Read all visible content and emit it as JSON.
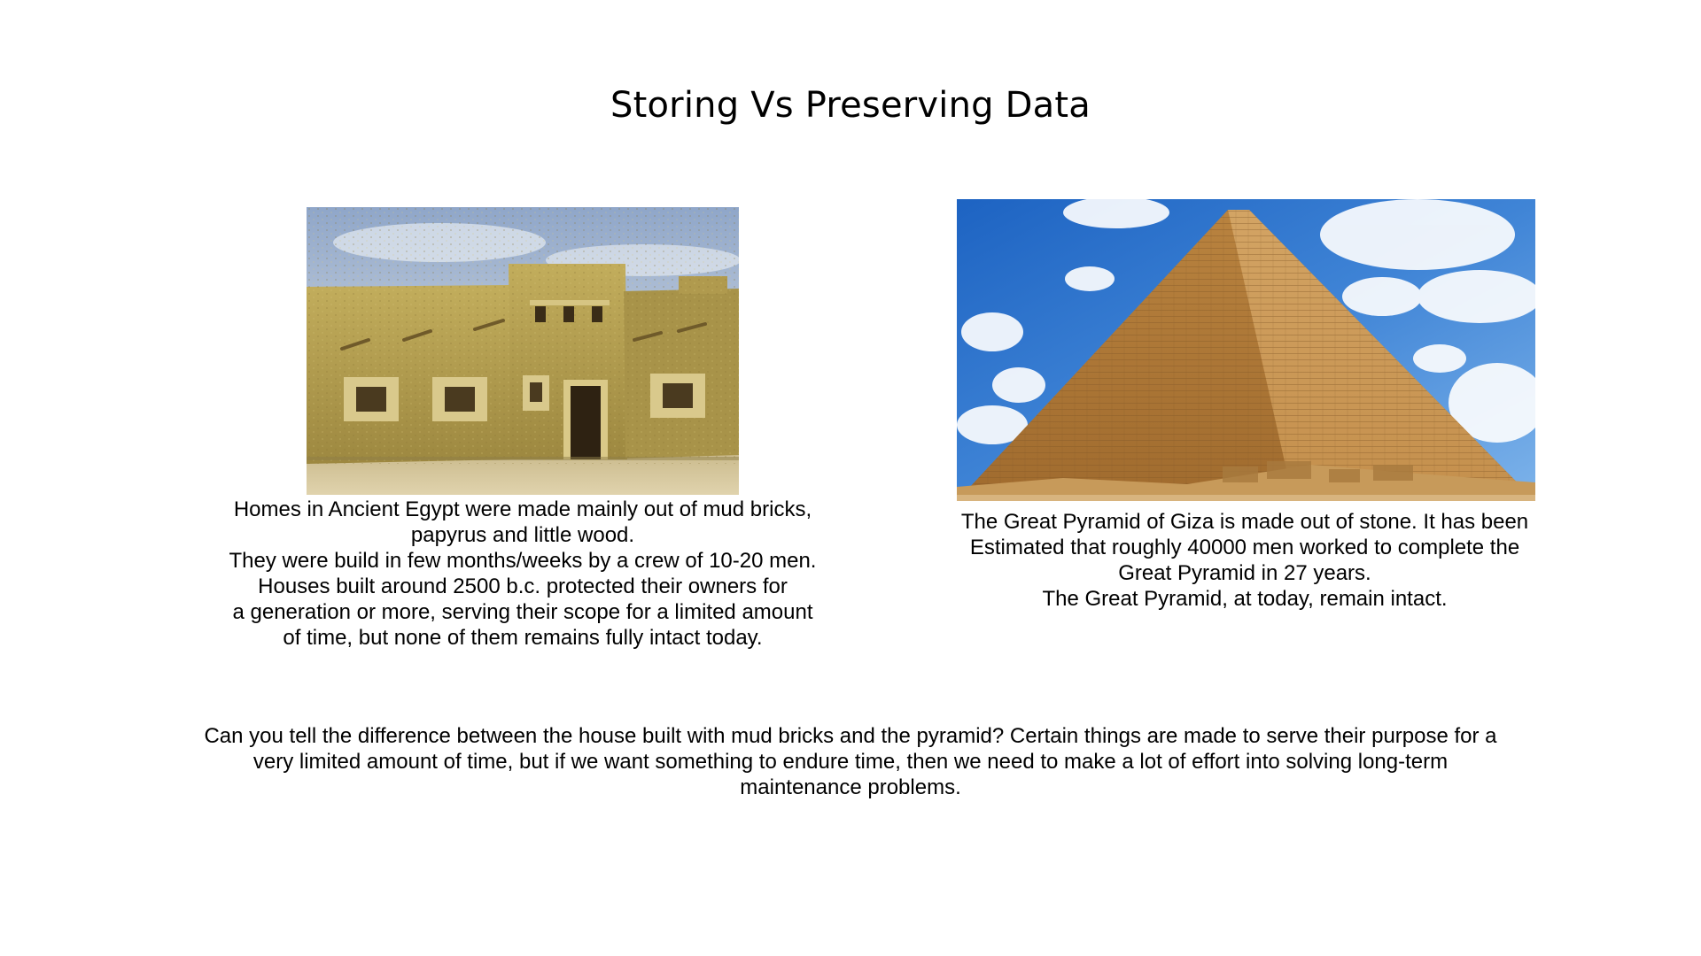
{
  "slide": {
    "title": "Storing Vs Preserving Data"
  },
  "house": {
    "image_subject": "mud brick house in Ancient Egypt",
    "caption_lines": [
      "Homes in Ancient Egypt were made mainly out of mud bricks,",
      "papyrus and little wood.",
      "They were build in few months/weeks by a crew of 10-20 men.",
      "Houses built around 2500 b.c. protected their owners for",
      "a generation or more, serving their scope for a limited amount",
      "of time, but none of them remains fully intact today."
    ]
  },
  "pyramid": {
    "image_subject": "Great Pyramid of Giza",
    "caption_lines": [
      "The Great Pyramid of Giza is made out of stone. It has been",
      "Estimated that roughly 40000 men worked to complete the",
      "Great Pyramid in 27 years.",
      "The Great Pyramid, at today, remain intact."
    ]
  },
  "conclusion": {
    "lines": [
      "Can you tell the difference between the house built with mud bricks and the pyramid? Certain things are made to serve their purpose for a",
      "very limited amount of time, but if we want something to endure time, then we need to make a lot of effort into solving long-term",
      "maintenance problems."
    ]
  },
  "colors": {
    "text": "#000000",
    "background": "#ffffff",
    "mud_brick": "#b8a052",
    "pyramid_stone": "#c9954f",
    "sky": "#3f84d6"
  }
}
